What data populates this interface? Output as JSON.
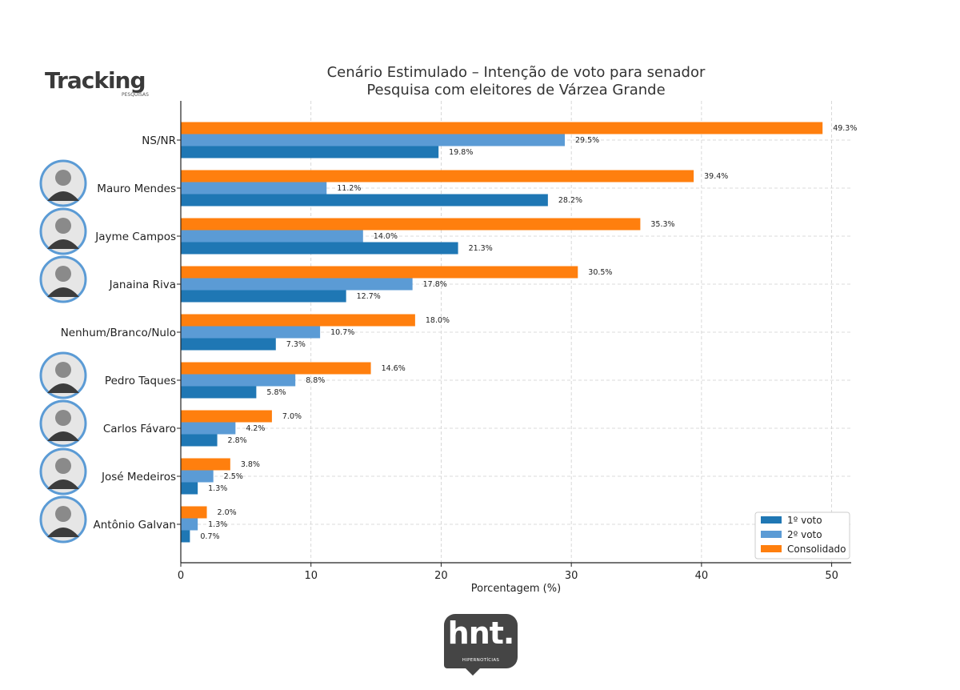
{
  "brand": {
    "tracking_logo": "Tracking",
    "tracking_sub": "PESQUISAS",
    "hnt_logo": "hnt.",
    "hnt_sub": "HIPERNOTÍCIAS"
  },
  "colors": {
    "voto1": "#1f77b4",
    "voto2": "#5b9bd5",
    "consolidado": "#ff7f0e"
  },
  "chart_data": {
    "type": "bar",
    "orientation": "horizontal",
    "title": "Cenário Estimulado – Intenção de voto para senador",
    "subtitle": "Pesquisa com eleitores de Várzea Grande",
    "xlabel": "Porcentagem (%)",
    "ylabel": "",
    "xlim": [
      0,
      51.5
    ],
    "xticks": [
      0,
      10,
      20,
      30,
      40,
      50
    ],
    "grid": true,
    "legend_position": "lower-right",
    "categories": [
      "NS/NR",
      "Mauro Mendes",
      "Jayme Campos",
      "Janaina Riva",
      "Nenhum/Branco/Nulo",
      "Pedro Taques",
      "Carlos Fávaro",
      "José Medeiros",
      "Antônio Galvan"
    ],
    "series": [
      {
        "name": "Consolidado",
        "values": [
          49.3,
          39.4,
          35.3,
          30.5,
          18.0,
          14.6,
          7.0,
          3.8,
          2.0
        ]
      },
      {
        "name": "2º voto",
        "values": [
          29.5,
          11.2,
          14.0,
          17.8,
          10.7,
          8.8,
          4.2,
          2.5,
          1.3
        ]
      },
      {
        "name": "1º voto",
        "values": [
          19.8,
          28.2,
          21.3,
          12.7,
          7.3,
          5.8,
          2.8,
          1.3,
          0.7
        ]
      }
    ],
    "legend_order": [
      "1º voto",
      "2º voto",
      "Consolidado"
    ],
    "photo_categories": [
      "Mauro Mendes",
      "Jayme Campos",
      "Janaina Riva",
      "Pedro Taques",
      "Carlos Fávaro",
      "José Medeiros",
      "Antônio Galvan"
    ]
  }
}
